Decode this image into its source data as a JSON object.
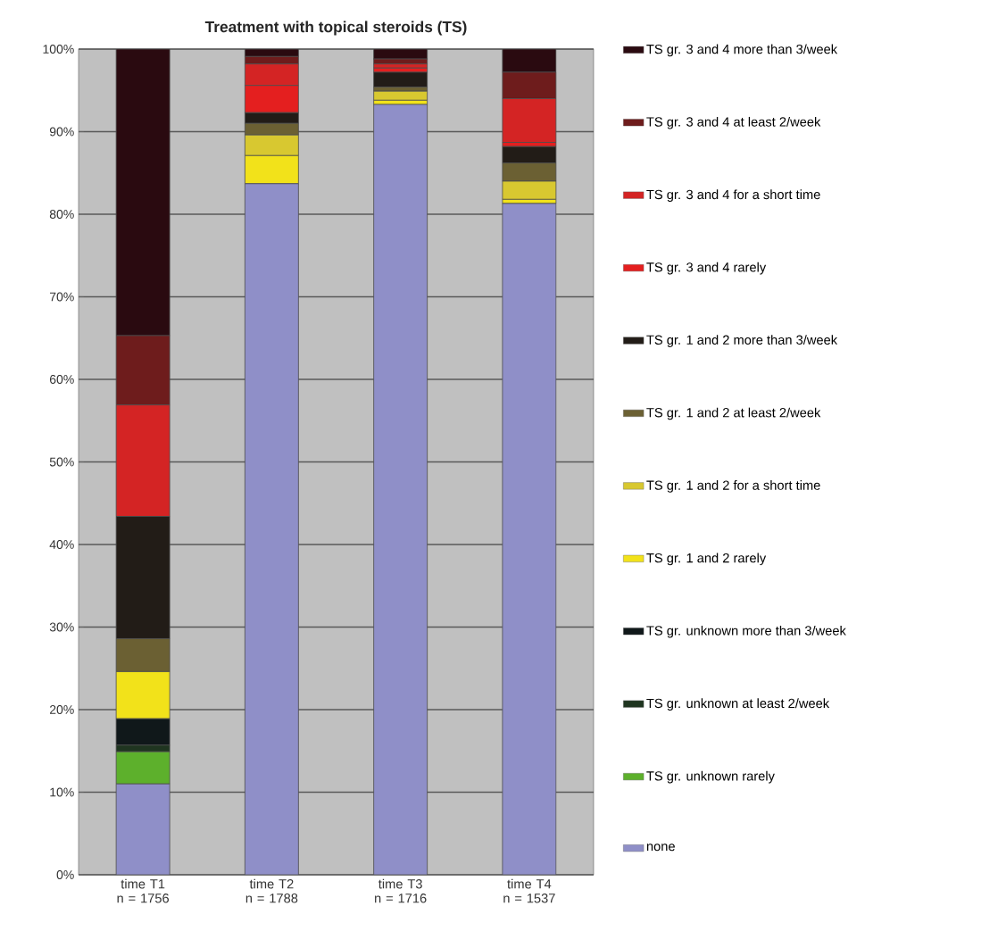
{
  "chart_data": {
    "type": "bar",
    "stacked": true,
    "title": "Treatment with topical steroids (TS)",
    "categories": [
      "time T1 n = 1756",
      "time T2 n = 1788",
      "time T3 n = 1716",
      "time T4 n = 1537"
    ],
    "ylim": [
      0,
      100
    ],
    "yticks": [
      {
        "value": 0,
        "label": "0%"
      },
      {
        "value": 10,
        "label": "10%"
      },
      {
        "value": 20,
        "label": "20%"
      },
      {
        "value": 30,
        "label": "30%"
      },
      {
        "value": 40,
        "label": "40%"
      },
      {
        "value": 50,
        "label": "50%"
      },
      {
        "value": 60,
        "label": "60%"
      },
      {
        "value": 70,
        "label": "70%"
      },
      {
        "value": 80,
        "label": "80%"
      },
      {
        "value": 90,
        "label": "90%"
      },
      {
        "value": 100,
        "label": "100%"
      }
    ],
    "grid": "y",
    "legend": "right",
    "series": [
      {
        "name": "none",
        "color": "#8f8fc8",
        "values": [
          11.0,
          83.7,
          93.3,
          81.3
        ]
      },
      {
        "name": "TS gr. unknown rarely",
        "color": "#5db02c",
        "values": [
          3.9,
          0,
          0,
          0
        ]
      },
      {
        "name": "TS gr. unknown at least 2/week",
        "color": "#1f3520",
        "values": [
          0.8,
          0,
          0,
          0
        ]
      },
      {
        "name": "TS gr. unknown more than 3/week",
        "color": "#10181a",
        "values": [
          3.2,
          0,
          0,
          0
        ]
      },
      {
        "name": "TS gr. 1 and 2 rarely",
        "color": "#f2e21a",
        "values": [
          5.7,
          3.4,
          0.5,
          0.5
        ]
      },
      {
        "name": "TS gr. 1 and 2 for a short time",
        "color": "#d8c830",
        "values": [
          0,
          2.5,
          1.1,
          2.2
        ]
      },
      {
        "name": "TS gr. 1 and 2 at least 2/week",
        "color": "#6b6033",
        "values": [
          4.0,
          1.4,
          0.5,
          2.2
        ]
      },
      {
        "name": "TS gr. 1 and 2 more than 3/week",
        "color": "#221c17",
        "values": [
          14.8,
          1.3,
          1.8,
          2.0
        ]
      },
      {
        "name": "TS gr. 3 and 4 rarely",
        "color": "#e41f1f",
        "values": [
          0,
          3.3,
          0.5,
          0.5
        ]
      },
      {
        "name": "TS gr. 3 and 4 for a short time",
        "color": "#d42424",
        "values": [
          13.5,
          2.6,
          0.5,
          5.3
        ]
      },
      {
        "name": "TS gr. 3 and 4 at least 2/week",
        "color": "#6e1c1c",
        "values": [
          8.4,
          0.9,
          0.6,
          3.2
        ]
      },
      {
        "name": "TS gr. 3 and 4 more than 3/week",
        "color": "#2a0a10",
        "values": [
          34.7,
          0.9,
          1.2,
          2.8
        ]
      }
    ]
  }
}
